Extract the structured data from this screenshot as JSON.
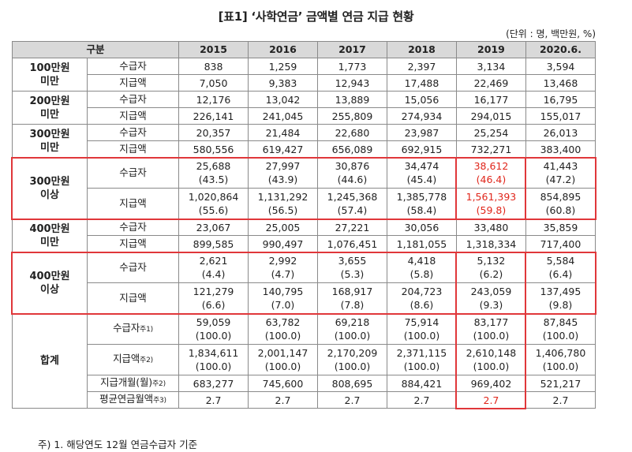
{
  "title": "[표1] ‘사학연금’ 금액별 연금 지급 현황",
  "unit": "(단위 : 명, 백만원, %)",
  "header": {
    "category": "구분",
    "years": [
      "2015",
      "2016",
      "2017",
      "2018",
      "2019",
      "2020.6."
    ]
  },
  "groups": [
    {
      "label": [
        "100만원",
        "미만"
      ],
      "rows": [
        {
          "metric": "수급자",
          "values": [
            "838",
            "1,259",
            "1,773",
            "2,397",
            "3,134",
            "3,594"
          ]
        },
        {
          "metric": "지급액",
          "values": [
            "7,050",
            "9,383",
            "12,943",
            "17,488",
            "22,469",
            "13,468"
          ]
        }
      ]
    },
    {
      "label": [
        "200만원",
        "미만"
      ],
      "rows": [
        {
          "metric": "수급자",
          "values": [
            "12,176",
            "13,042",
            "13,889",
            "15,056",
            "16,177",
            "16,795"
          ]
        },
        {
          "metric": "지급액",
          "values": [
            "226,141",
            "241,045",
            "255,809",
            "274,934",
            "294,015",
            "155,017"
          ]
        }
      ]
    },
    {
      "label": [
        "300만원",
        "미만"
      ],
      "rows": [
        {
          "metric": "수급자",
          "values": [
            "20,357",
            "21,484",
            "22,680",
            "23,987",
            "25,254",
            "26,013"
          ]
        },
        {
          "metric": "지급액",
          "values": [
            "580,556",
            "619,427",
            "656,089",
            "692,915",
            "732,271",
            "383,400"
          ]
        }
      ]
    },
    {
      "label": [
        "300만원",
        "이상"
      ],
      "rows": [
        {
          "metric": "수급자",
          "values": [
            "25,688",
            "27,997",
            "30,876",
            "34,474",
            "38,612",
            "41,443"
          ],
          "shares": [
            "(43.5)",
            "(43.9)",
            "(44.6)",
            "(45.4)",
            "(46.4)",
            "(47.2)"
          ]
        },
        {
          "metric": "지급액",
          "values": [
            "1,020,864",
            "1,131,292",
            "1,245,368",
            "1,385,778",
            "1,561,393",
            "854,895"
          ],
          "shares": [
            "(55.6)",
            "(56.5)",
            "(57.4)",
            "(58.4)",
            "(59.8)",
            "(60.8)"
          ]
        }
      ]
    },
    {
      "label": [
        "400만원",
        "미만"
      ],
      "rows": [
        {
          "metric": "수급자",
          "values": [
            "23,067",
            "25,005",
            "27,221",
            "30,056",
            "33,480",
            "35,859"
          ]
        },
        {
          "metric": "지급액",
          "values": [
            "899,585",
            "990,497",
            "1,076,451",
            "1,181,055",
            "1,318,334",
            "717,400"
          ]
        }
      ]
    },
    {
      "label": [
        "400만원",
        "이상"
      ],
      "rows": [
        {
          "metric": "수급자",
          "values": [
            "2,621",
            "2,992",
            "3,655",
            "4,418",
            "5,132",
            "5,584"
          ],
          "shares": [
            "(4.4)",
            "(4.7)",
            "(5.3)",
            "(5.8)",
            "(6.2)",
            "(6.4)"
          ]
        },
        {
          "metric": "지급액",
          "values": [
            "121,279",
            "140,795",
            "168,917",
            "204,723",
            "243,059",
            "137,495"
          ],
          "shares": [
            "(6.6)",
            "(7.0)",
            "(7.8)",
            "(8.6)",
            "(9.3)",
            "(9.8)"
          ]
        }
      ]
    }
  ],
  "total": {
    "label": "합계",
    "rows": [
      {
        "metric": "수급자",
        "note": "주1)",
        "values": [
          "59,059",
          "63,782",
          "69,218",
          "75,914",
          "83,177",
          "87,845"
        ],
        "shares": [
          "(100.0)",
          "(100.0)",
          "(100.0)",
          "(100.0)",
          "(100.0)",
          "(100.0)"
        ]
      },
      {
        "metric": "지급액",
        "note": "주2)",
        "values": [
          "1,834,611",
          "2,001,147",
          "2,170,209",
          "2,371,115",
          "2,610,148",
          "1,406,780"
        ],
        "shares": [
          "(100.0)",
          "(100.0)",
          "(100.0)",
          "(100.0)",
          "(100.0)",
          "(100.0)"
        ]
      },
      {
        "metric": "지급개월(월)",
        "note": "주2)",
        "values": [
          "683,277",
          "745,600",
          "808,695",
          "884,421",
          "969,402",
          "521,217"
        ]
      },
      {
        "metric": "평균연금월액",
        "note": "주3)",
        "values": [
          "2.7",
          "2.7",
          "2.7",
          "2.7",
          "2.7",
          "2.7"
        ]
      }
    ]
  },
  "footnote": "주) 1. 해당연도 12월 연금수급자 기준",
  "colors": {
    "highlight": "#e0261b",
    "header_bg": "#d9d9d9",
    "border": "#8a8a8a"
  }
}
